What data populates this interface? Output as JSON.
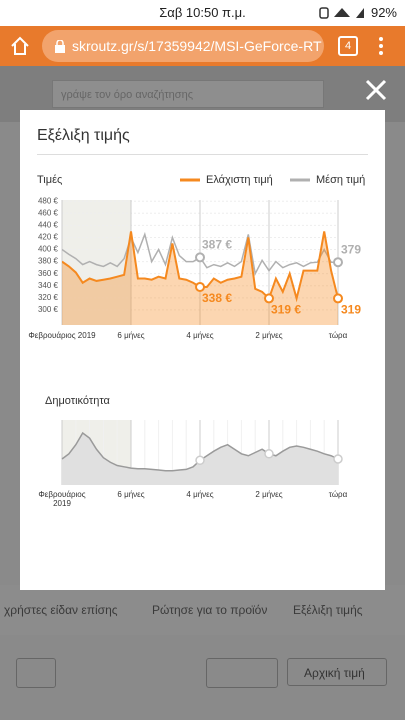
{
  "status_bar": {
    "time": "Σαβ 10:50 π.μ.",
    "battery": "92%"
  },
  "browser": {
    "url": "skroutz.gr/s/17359942/MSI-GeForce-RT",
    "tabs": "4"
  },
  "background": {
    "search_placeholder": "γράψε τον όρο αναζήτησης",
    "tabs": [
      "χρήστες είδαν επίσης",
      "Ρώτησε για το προϊόν",
      "Εξέλιξη τιμής"
    ],
    "sort": "Αρχική τιμή"
  },
  "modal": {
    "title": "Εξέλιξη τιμής"
  },
  "chart_data": [
    {
      "type": "line",
      "title": "Τιμές",
      "categories": [
        "Φεβρουάριος 2019",
        null,
        null,
        null,
        null,
        null,
        null,
        null,
        null,
        null,
        "6 μήνες",
        null,
        null,
        null,
        null,
        null,
        null,
        null,
        null,
        null,
        "4 μήνες",
        null,
        null,
        null,
        null,
        null,
        null,
        null,
        null,
        null,
        "2 μήνες",
        null,
        null,
        null,
        null,
        null,
        null,
        null,
        null,
        null,
        "τώρα"
      ],
      "series": [
        {
          "name": "Ελάχιστη τιμή",
          "color": "#f5891f",
          "values": [
            380,
            372,
            362,
            345,
            352,
            348,
            350,
            352,
            355,
            358,
            430,
            352,
            352,
            350,
            355,
            352,
            410,
            352,
            350,
            345,
            338,
            338,
            352,
            345,
            350,
            352,
            355,
            420,
            335,
            330,
            319,
            352,
            330,
            360,
            319,
            365,
            365,
            365,
            430,
            365,
            319
          ],
          "value_labels": [
            null,
            null,
            null,
            null,
            null,
            null,
            null,
            null,
            null,
            null,
            null,
            null,
            null,
            null,
            null,
            null,
            null,
            null,
            null,
            null,
            "338 €",
            null,
            null,
            null,
            null,
            null,
            null,
            null,
            null,
            null,
            "319 €",
            null,
            null,
            null,
            null,
            null,
            null,
            null,
            null,
            null,
            "319"
          ]
        },
        {
          "name": "Μέση τιμή",
          "color": "#b0b0b0",
          "values": [
            400,
            392,
            385,
            375,
            380,
            375,
            372,
            378,
            372,
            385,
            420,
            395,
            425,
            380,
            400,
            375,
            420,
            390,
            380,
            380,
            387,
            370,
            375,
            372,
            378,
            372,
            380,
            425,
            360,
            382,
            365,
            380,
            370,
            375,
            378,
            372,
            378,
            379,
            400,
            379,
            379
          ],
          "value_labels": [
            null,
            null,
            null,
            null,
            null,
            null,
            null,
            null,
            null,
            null,
            null,
            null,
            null,
            null,
            null,
            null,
            null,
            null,
            null,
            null,
            "387 €",
            null,
            null,
            null,
            null,
            null,
            null,
            null,
            null,
            null,
            null,
            null,
            null,
            null,
            null,
            null,
            null,
            null,
            null,
            null,
            "379"
          ]
        }
      ],
      "ylim": [
        275,
        482
      ],
      "yticks": [
        {
          "value": 300,
          "label": "300 €"
        },
        {
          "value": 320,
          "label": "320 €"
        },
        {
          "value": 340,
          "label": "340 €"
        },
        {
          "value": 360,
          "label": "360 €"
        },
        {
          "value": 380,
          "label": "380 €"
        },
        {
          "value": 400,
          "label": "400 €"
        },
        {
          "value": 420,
          "label": "420 €"
        },
        {
          "value": 440,
          "label": "440 €"
        },
        {
          "value": 460,
          "label": "460 €"
        },
        {
          "value": 480,
          "label": "480 €"
        }
      ]
    },
    {
      "type": "area",
      "title": "Δημοτικότητα",
      "categories": [
        "Φεβρουάριος 2019",
        null,
        null,
        null,
        null,
        null,
        null,
        null,
        null,
        null,
        "6 μήνες",
        null,
        null,
        null,
        null,
        null,
        null,
        null,
        null,
        null,
        "4 μήνες",
        null,
        null,
        null,
        null,
        null,
        null,
        null,
        null,
        null,
        "2 μήνες",
        null,
        null,
        null,
        null,
        null,
        null,
        null,
        null,
        null,
        "τώρα"
      ],
      "values": [
        40,
        48,
        62,
        80,
        72,
        55,
        42,
        35,
        30,
        28,
        26,
        25,
        25,
        24,
        23,
        22,
        22,
        23,
        24,
        28,
        38,
        45,
        52,
        58,
        62,
        55,
        48,
        45,
        50,
        55,
        48,
        45,
        52,
        58,
        60,
        58,
        55,
        52,
        48,
        45,
        40
      ],
      "color": "#9a9a9a",
      "ylim": [
        0,
        100
      ]
    }
  ]
}
